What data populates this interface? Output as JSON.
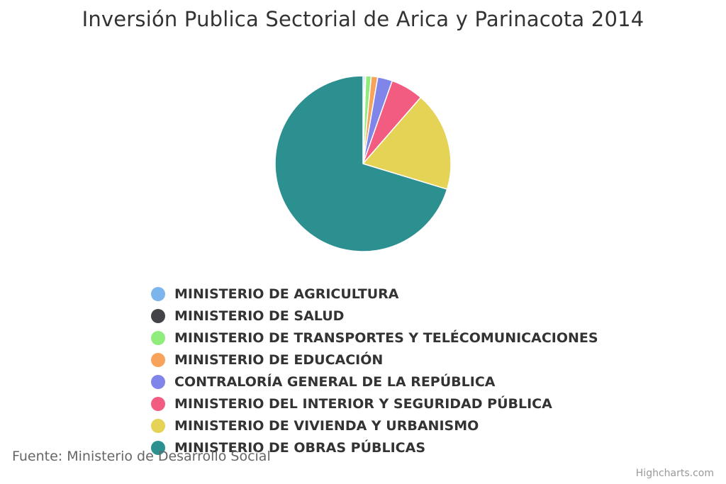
{
  "chart_data": {
    "type": "pie",
    "title": "Inversión Publica Sectorial de Arica y Parinacota 2014",
    "legend_position": "bottom",
    "series": [
      {
        "slices": [
          {
            "name": "MINISTERIO DE AGRICULTURA",
            "value": 0.3,
            "color": "#7cb5ec"
          },
          {
            "name": "MINISTERIO DE SALUD",
            "value": 0.2,
            "color": "#434348"
          },
          {
            "name": "MINISTERIO DE TRANSPORTES Y TELÉCOMUNICACIONES",
            "value": 1.0,
            "color": "#90ed7d"
          },
          {
            "name": "MINISTERIO DE EDUCACIÓN",
            "value": 1.2,
            "color": "#f7a35c"
          },
          {
            "name": "CONTRALORÍA GENERAL DE LA REPÚBLICA",
            "value": 2.7,
            "color": "#8085e9"
          },
          {
            "name": "MINISTERIO DEL INTERIOR Y SEGURIDAD PÚBLICA",
            "value": 6.0,
            "color": "#f15c80"
          },
          {
            "name": "MINISTERIO DE VIVIENDA Y URBANISMO",
            "value": 18.3,
            "color": "#e4d354"
          },
          {
            "name": "MINISTERIO DE OBRAS PÚBLICAS",
            "value": 70.3,
            "color": "#2b908f"
          }
        ]
      }
    ]
  },
  "source_text": "Fuente: Ministerio de Desarrollo Social",
  "credits_text": "Highcharts.com"
}
